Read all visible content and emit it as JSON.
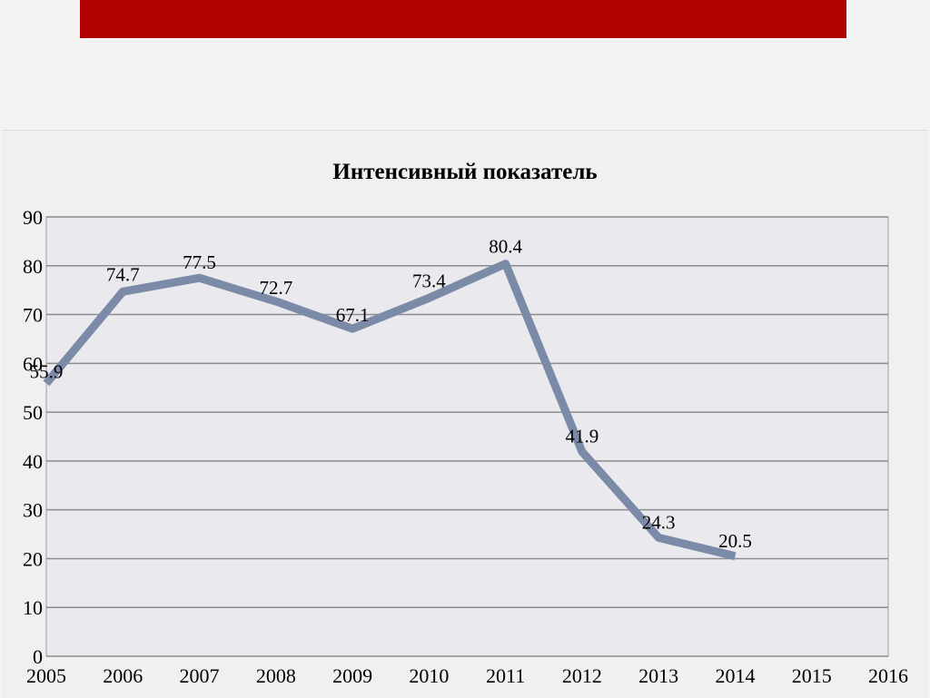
{
  "colors": {
    "top_band": "#b00000",
    "plot_background": "#e9e9ee",
    "gridline": "#8c8c8c",
    "series_line": "#7b8aa7"
  },
  "chart_data": {
    "type": "line",
    "title": "Интенсивный показатель",
    "xlabel": "",
    "ylabel": "",
    "x": [
      "2005",
      "2006",
      "2007",
      "2008",
      "2009",
      "2010",
      "2011",
      "2012",
      "2013",
      "2014"
    ],
    "x_ticks": [
      "2005",
      "2006",
      "2007",
      "2008",
      "2009",
      "2010",
      "2011",
      "2012",
      "2013",
      "2014",
      "2015",
      "2016"
    ],
    "y_ticks": [
      "0",
      "10",
      "20",
      "30",
      "40",
      "50",
      "60",
      "70",
      "80",
      "90"
    ],
    "ylim": [
      0,
      90
    ],
    "grid": true,
    "legend": "none",
    "series": [
      {
        "values": [
          55.9,
          74.7,
          77.5,
          72.7,
          67.1,
          73.4,
          80.4,
          41.9,
          24.3,
          20.5
        ],
        "labels": [
          "55.9",
          "74.7",
          "77.5",
          "72.7",
          "67.1",
          "73.4",
          "80.4",
          "41.9",
          "24.3",
          "20.5"
        ]
      }
    ]
  }
}
